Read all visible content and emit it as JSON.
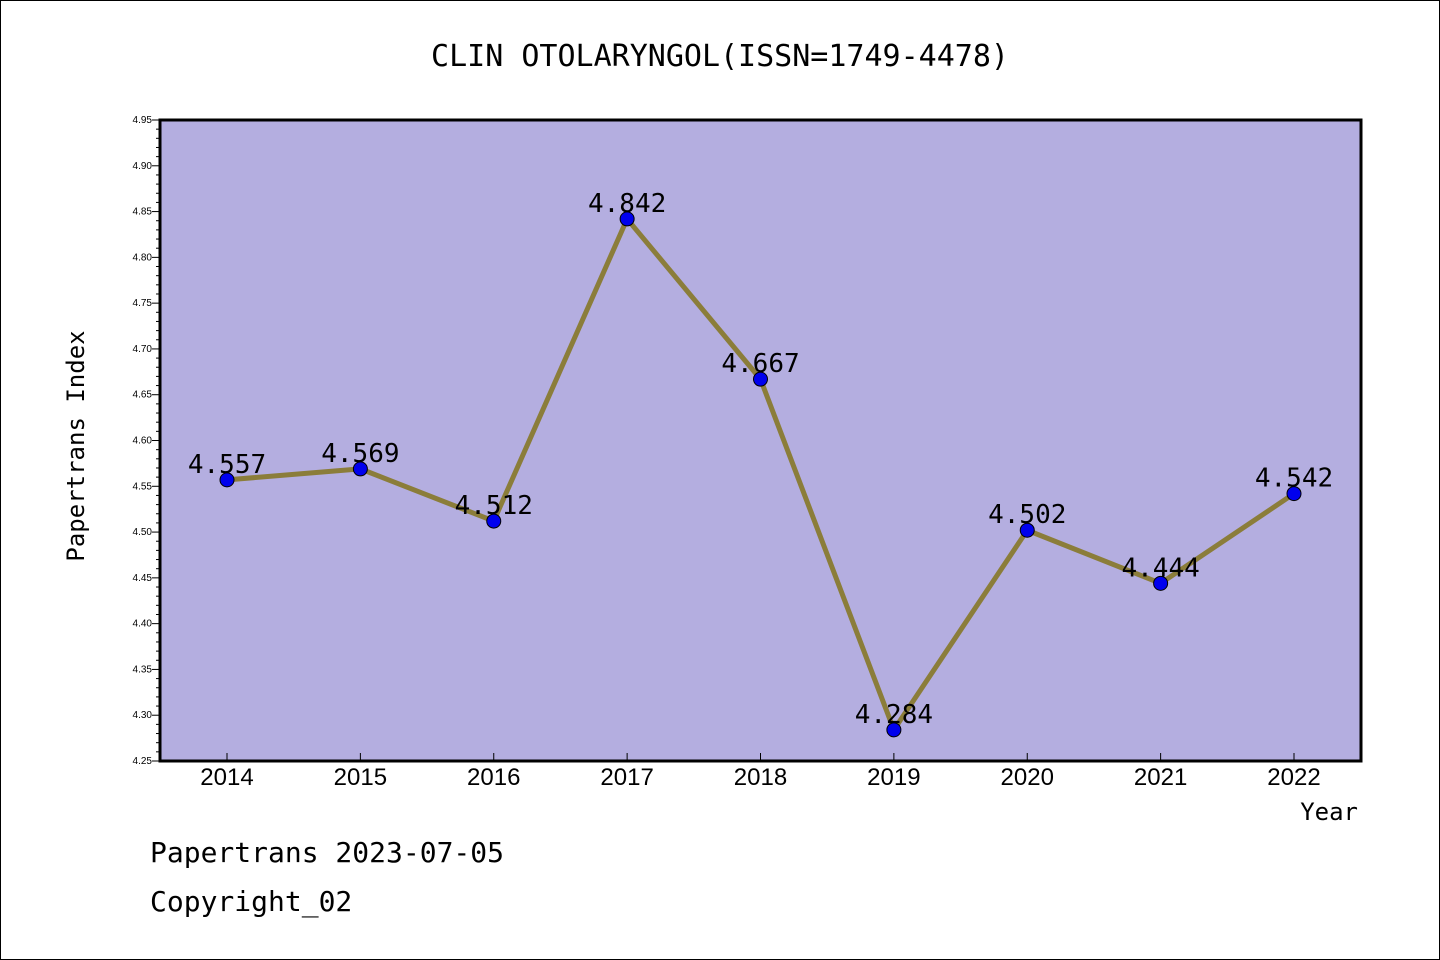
{
  "chart_data": {
    "type": "line",
    "title": "CLIN OTOLARYNGOL(ISSN=1749-4478)",
    "xlabel": "Year",
    "ylabel": "Papertrans Index",
    "categories": [
      "2014",
      "2015",
      "2016",
      "2017",
      "2018",
      "2019",
      "2020",
      "2021",
      "2022"
    ],
    "values": [
      4.557,
      4.569,
      4.512,
      4.842,
      4.667,
      4.284,
      4.502,
      4.444,
      4.542
    ],
    "data_labels": [
      "4.557",
      "4.569",
      "4.512",
      "4.842",
      "4.667",
      "4.284",
      "4.502",
      "4.444",
      "4.542"
    ],
    "ylim": [
      4.25,
      4.95
    ],
    "yticks": [
      "4.25",
      "4.30",
      "4.35",
      "4.40",
      "4.45",
      "4.50",
      "4.55",
      "4.60",
      "4.65",
      "4.70",
      "4.75",
      "4.80",
      "4.85",
      "4.90",
      "4.95"
    ],
    "grid": false,
    "colors": {
      "plot_background": "#b4aee0",
      "line": "#8b7d3a",
      "marker": "#0000ee"
    }
  },
  "footer": {
    "line1": "Papertrans 2023-07-05",
    "line2": "Copyright_02"
  }
}
